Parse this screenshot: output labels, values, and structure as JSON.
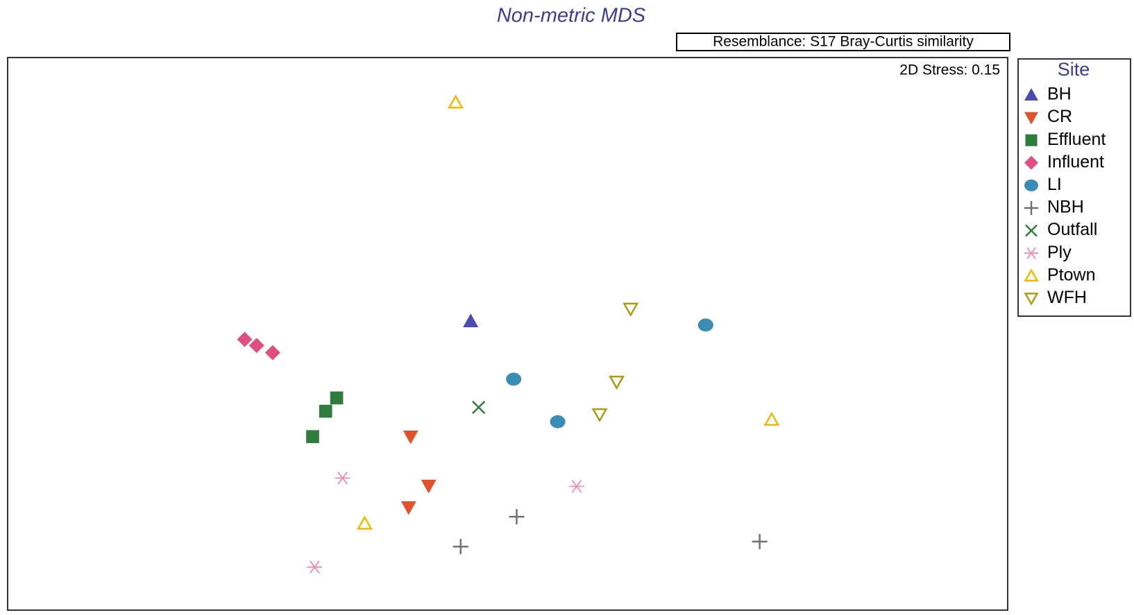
{
  "chart_data": {
    "type": "scatter",
    "title": "Non-metric MDS",
    "annotations": {
      "resemblance": "Resemblance: S17 Bray-Curtis similarity",
      "stress": "2D Stress: 0.15"
    },
    "legend_title": "Site",
    "legend": "right",
    "xlim": [
      0,
      100
    ],
    "ylim": [
      0,
      100
    ],
    "series": [
      {
        "name": "BH",
        "color": "#4a4ab4",
        "marker": "triangle-up",
        "x": [
          46.3
        ],
        "values": [
          52.3
        ]
      },
      {
        "name": "CR",
        "color": "#e2532c",
        "marker": "triangle-down",
        "x": [
          40.3,
          42.1,
          40.1
        ],
        "values": [
          31.4,
          22.5,
          18.6
        ]
      },
      {
        "name": "Effluent",
        "color": "#2f7d3c",
        "marker": "square",
        "x": [
          32.9,
          31.8,
          30.5
        ],
        "values": [
          38.4,
          36.0,
          31.4
        ]
      },
      {
        "name": "Influent",
        "color": "#e0507c",
        "marker": "diamond",
        "x": [
          23.7,
          24.9,
          26.5
        ],
        "values": [
          49.0,
          47.9,
          46.6
        ]
      },
      {
        "name": "LI",
        "color": "#3a8cb4",
        "marker": "circle",
        "x": [
          69.8,
          50.6,
          55.0
        ],
        "values": [
          51.6,
          41.8,
          34.1
        ]
      },
      {
        "name": "NBH",
        "color": "#707070",
        "marker": "plus",
        "x": [
          50.9,
          45.3,
          75.2
        ],
        "values": [
          16.9,
          11.5,
          12.4
        ]
      },
      {
        "name": "Outfall",
        "color": "#2f7d3c",
        "marker": "cross",
        "x": [
          47.1
        ],
        "values": [
          36.7
        ]
      },
      {
        "name": "Ply",
        "color": "#f08cb4",
        "marker": "asterisk",
        "x": [
          33.5,
          56.9,
          30.7
        ],
        "values": [
          23.9,
          22.4,
          7.8
        ]
      },
      {
        "name": "Ptown",
        "color": "#f5b800",
        "marker": "open-triangle-up",
        "x": [
          44.8,
          76.4,
          35.7
        ],
        "values": [
          91.9,
          34.5,
          15.7
        ]
      },
      {
        "name": "WFH",
        "color": "#b09a12",
        "marker": "open-triangle-down",
        "x": [
          62.3,
          60.9,
          59.2
        ],
        "values": [
          54.5,
          41.3,
          35.4
        ]
      }
    ]
  }
}
